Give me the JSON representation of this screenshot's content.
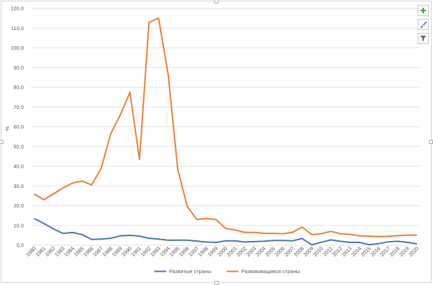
{
  "tools": {
    "add_icon": "+",
    "brush_icon": "brush",
    "filter_icon": "filter"
  },
  "chart_data": {
    "type": "line",
    "ylabel": "%",
    "ylim": [
      0,
      120
    ],
    "ytick_step": 10,
    "ytick_labels": [
      "0,0",
      "10,0",
      "20,0",
      "30,0",
      "40,0",
      "50,0",
      "60,0",
      "70,0",
      "80,0",
      "90,0",
      "100,0",
      "110,0",
      "120,0"
    ],
    "x": [
      "1980",
      "1981",
      "1982",
      "1983",
      "1984",
      "1985",
      "1986",
      "1987",
      "1988",
      "1989",
      "1990",
      "1991",
      "1992",
      "1993",
      "1994",
      "1995",
      "1996",
      "1997",
      "1998",
      "1999",
      "2000",
      "2001",
      "2002",
      "2003",
      "2004",
      "2005",
      "2006",
      "2007",
      "2008",
      "2009",
      "2010",
      "2011",
      "2012",
      "2013",
      "2014",
      "2015",
      "2016",
      "2017",
      "2018",
      "2019",
      "2020"
    ],
    "grid": true,
    "legend_position": "bottom",
    "series": [
      {
        "name": "Развитые страны",
        "color": "#4472c4",
        "values": [
          13.5,
          11.0,
          8.3,
          6.0,
          6.4,
          5.4,
          2.9,
          3.1,
          3.5,
          4.7,
          5.0,
          4.6,
          3.5,
          3.1,
          2.5,
          2.6,
          2.5,
          2.1,
          1.6,
          1.4,
          2.2,
          2.2,
          1.6,
          1.8,
          2.0,
          2.4,
          2.4,
          2.2,
          3.4,
          0.2,
          1.5,
          2.7,
          2.0,
          1.4,
          1.4,
          0.3,
          0.8,
          1.7,
          2.0,
          1.4,
          0.7
        ]
      },
      {
        "name": "Развивающиеся страны",
        "color": "#ed7d31",
        "values": [
          26.0,
          23.0,
          26.0,
          29.0,
          31.5,
          32.5,
          30.5,
          39.0,
          56.5,
          66.0,
          77.5,
          43.5,
          113.0,
          115.0,
          86.5,
          38.5,
          19.5,
          13.0,
          13.5,
          13.0,
          8.5,
          7.7,
          6.5,
          6.5,
          6.0,
          6.0,
          5.8,
          6.5,
          9.2,
          5.3,
          5.8,
          7.0,
          5.8,
          5.5,
          4.7,
          4.6,
          4.4,
          4.5,
          4.9,
          5.1,
          5.1
        ]
      }
    ]
  }
}
